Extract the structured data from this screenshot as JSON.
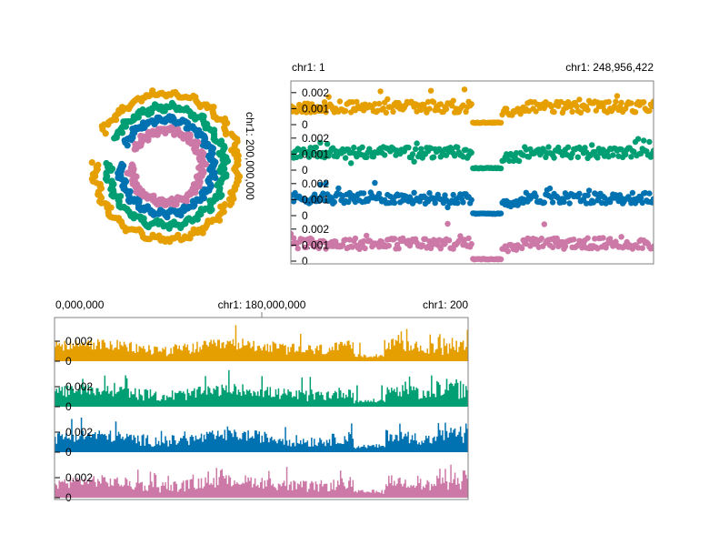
{
  "colors": {
    "orange": "#E69F00",
    "green": "#009E73",
    "blue": "#0072B2",
    "pink": "#CC79A7",
    "frame": "#808080",
    "text": "#000000"
  },
  "chart_data": [
    {
      "type": "scatter",
      "layout": "circular",
      "axis_label": "chr1: 200,000,000",
      "tracks": [
        {
          "color_key": "orange"
        },
        {
          "color_key": "green"
        },
        {
          "color_key": "blue"
        },
        {
          "color_key": "pink"
        }
      ]
    },
    {
      "type": "scatter",
      "layout": "stacked-tracks",
      "x_label_left": "chr1: 1",
      "x_label_right": "chr1: 248,956,422",
      "ylim": [
        0,
        0.0025
      ],
      "y_ticks": [
        "0.002",
        "0.001",
        "0"
      ],
      "gap_x_range": [
        0.49,
        0.59
      ],
      "tracks": [
        {
          "color_key": "orange",
          "base": 0.0011
        },
        {
          "color_key": "green",
          "base": 0.0011
        },
        {
          "color_key": "blue",
          "base": 0.0011
        },
        {
          "color_key": "pink",
          "base": 0.0011
        }
      ]
    },
    {
      "type": "bar",
      "layout": "stacked-tracks",
      "x_tick_labels": [
        "0,000,000",
        "chr1: 180,000,000",
        "chr1: 200"
      ],
      "ylim": [
        0,
        0.004
      ],
      "y_ticks": [
        "0.002",
        "0"
      ],
      "tracks": [
        {
          "color_key": "orange"
        },
        {
          "color_key": "green"
        },
        {
          "color_key": "blue"
        },
        {
          "color_key": "pink"
        }
      ]
    }
  ]
}
